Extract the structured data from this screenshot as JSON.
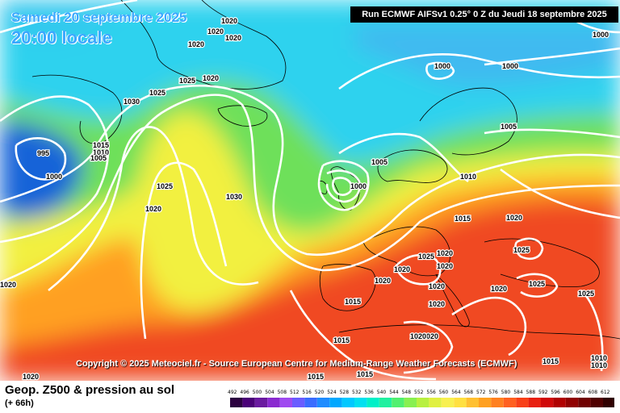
{
  "header": {
    "date": "Samedi 20 septembre 2025",
    "time": "20:00 locale",
    "run": "Run ECMWF AIFSv1 0.25° 0 Z du Jeudi 18 septembre 2025"
  },
  "copyright": "Copyright © 2025 Meteociel.fr - Source European Centre for Medium-Range Weather Forecasts (ECMWF)",
  "footer": {
    "title": "Geop. Z500 & pression au sol",
    "subtitle": "(+ 66h)"
  },
  "legend": {
    "ticks": [
      "492",
      "496",
      "500",
      "504",
      "508",
      "512",
      "516",
      "520",
      "524",
      "528",
      "532",
      "536",
      "540",
      "544",
      "548",
      "552",
      "556",
      "560",
      "564",
      "568",
      "572",
      "576",
      "580",
      "584",
      "588",
      "592",
      "596",
      "600",
      "604",
      "608",
      "612"
    ],
    "colors": [
      "#2b0040",
      "#4a0078",
      "#6a1aa0",
      "#8a2ad0",
      "#9f4af0",
      "#6a5cff",
      "#3a6cff",
      "#1e8cff",
      "#00a8ff",
      "#00c8ff",
      "#00e0f0",
      "#00f0c8",
      "#20f0a0",
      "#50f070",
      "#88f050",
      "#b8f040",
      "#e0f040",
      "#f8f050",
      "#ffe040",
      "#ffc030",
      "#ffa020",
      "#ff8020",
      "#ff6020",
      "#f84018",
      "#e82010",
      "#d00808",
      "#b00000",
      "#900000",
      "#700000",
      "#500000",
      "#300000"
    ]
  },
  "map": {
    "colors": {
      "deep_blue": "#1463d8",
      "cyan": "#2ed2ee",
      "green": "#6ee05a",
      "yellow": "#f2f040",
      "orange": "#ff9a20",
      "red": "#f04820",
      "isobar": "#ffffff",
      "coast": "#000000"
    },
    "pressure_labels": [
      "1020",
      "1020",
      "1020",
      "1020",
      "1025",
      "1020",
      "1030",
      "1025",
      "995",
      "1000",
      "1015",
      "1010",
      "1005",
      "1025",
      "1020",
      "1030",
      "1005",
      "1000",
      "1010",
      "1000",
      "1000",
      "1005",
      "1000",
      "1015",
      "1020",
      "1020",
      "1025",
      "1025",
      "1020",
      "1020",
      "1020",
      "1020",
      "1025",
      "1015",
      "1020",
      "1020",
      "1025",
      "1015",
      "1020",
      "1015",
      "1015",
      "1020",
      "1020",
      "1015",
      "1010",
      "1010",
      "1020"
    ]
  }
}
